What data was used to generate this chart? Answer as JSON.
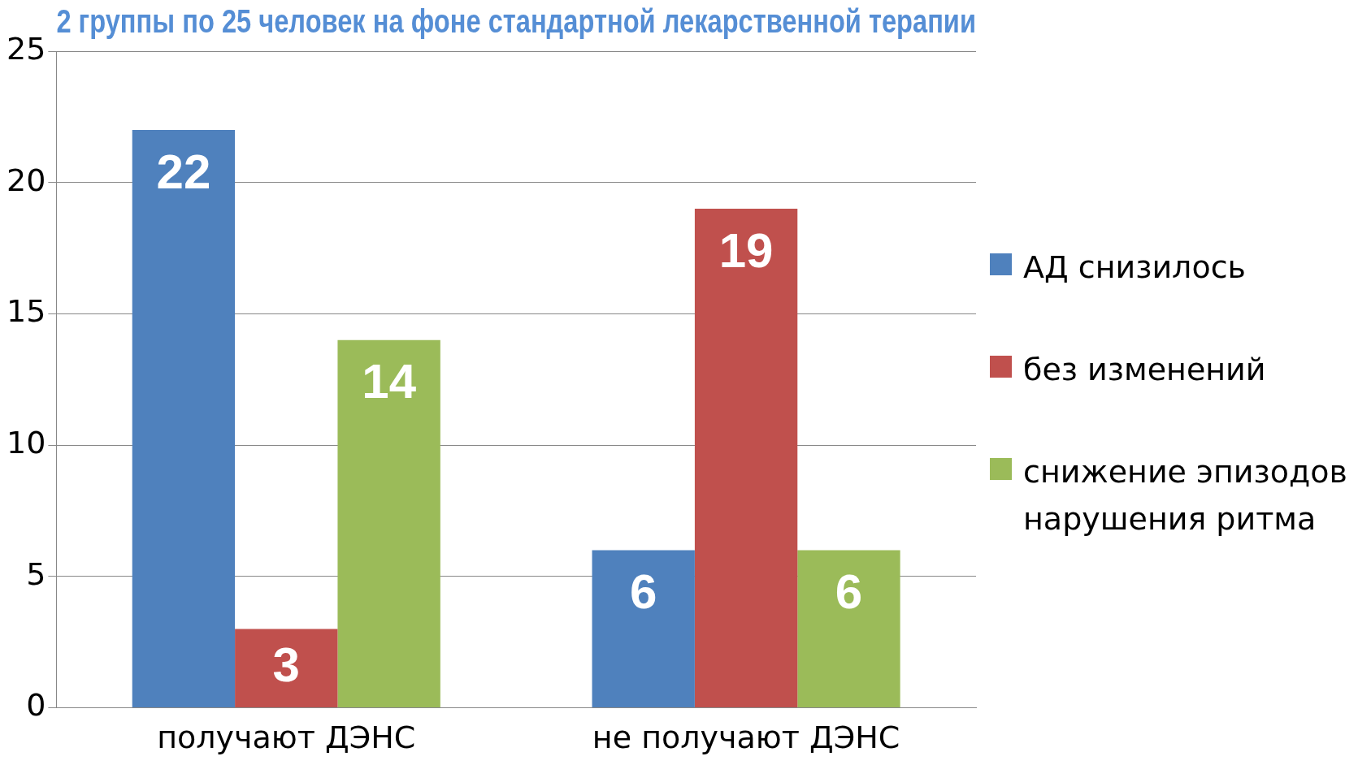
{
  "chart_data": {
    "type": "bar",
    "title": "2 группы по 25 человек на фоне стандартной лекарственной терапии",
    "categories": [
      "получают ДЭНС",
      "не получают ДЭНС"
    ],
    "series": [
      {
        "name": "АД снизилось",
        "color": "#4f81bd",
        "values": [
          22,
          6
        ]
      },
      {
        "name": "без изменений",
        "color": "#c0504d",
        "values": [
          3,
          19
        ]
      },
      {
        "name": "снижение эпизодов нарушения ритма",
        "color": "#9bbb59",
        "values": [
          14,
          6
        ]
      }
    ],
    "ylim": [
      0,
      25
    ],
    "yticks": [
      0,
      5,
      10,
      15,
      20,
      25
    ],
    "grid": "y",
    "legend": "right",
    "data_labels": true
  }
}
